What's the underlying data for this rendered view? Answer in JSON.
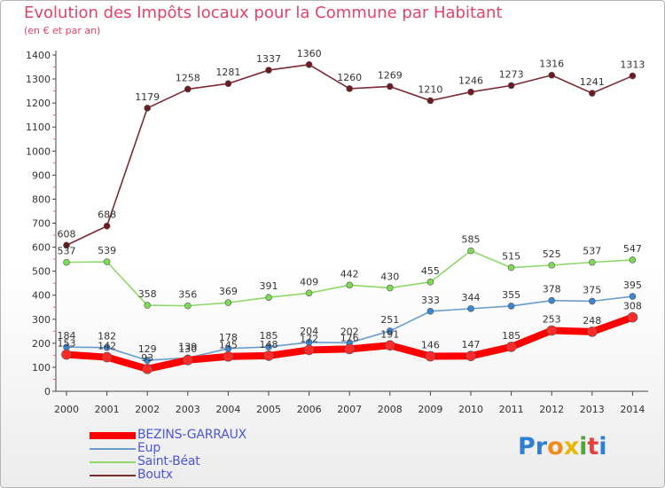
{
  "header": {
    "title": "Evolution des Impôts locaux pour la Commune par Habitant",
    "subtitle": "(en € et par an)"
  },
  "logo": {
    "letters": [
      "P",
      "r",
      "o",
      "x",
      "i",
      "t",
      "i"
    ],
    "colors": [
      "#2f7fd2",
      "#2f7fd2",
      "#f28a1c",
      "#e6b800",
      "#4da83a",
      "#e64040",
      "#2f7fd2"
    ]
  },
  "colors": {
    "title": "#e0426a",
    "legend_text": "#4a55d8",
    "axis": "#444444",
    "gridline": "#dddddd"
  },
  "chart_data": {
    "type": "line",
    "title": "Evolution des Impôts locaux pour la Commune par Habitant",
    "subtitle": "(en € et par an)",
    "xlabel": "",
    "ylabel": "",
    "categories": [
      "2000",
      "2001",
      "2002",
      "2003",
      "2004",
      "2005",
      "2006",
      "2007",
      "2008",
      "2009",
      "2010",
      "2011",
      "2012",
      "2013",
      "2014"
    ],
    "ylim": [
      0,
      1400
    ],
    "yticks": [
      0,
      100,
      200,
      300,
      400,
      500,
      600,
      700,
      800,
      900,
      1000,
      1100,
      1200,
      1300,
      1400
    ],
    "ytick_labels": [
      "0",
      "100",
      "200",
      "300",
      "400",
      "500",
      "600",
      "700",
      "800",
      "900",
      "1000",
      "1100",
      "1200",
      "1300",
      "1400"
    ],
    "grid": false,
    "legend_position": "bottom-left",
    "series": [
      {
        "name": "BEZINS-GARRAUX",
        "color": "#ff0000",
        "marker_color": "#ff2a2a",
        "values": [
          153,
          142,
          93,
          130,
          145,
          148,
          172,
          176,
          191,
          146,
          147,
          185,
          253,
          248,
          308
        ],
        "labels": [
          "153",
          "142",
          "93",
          "130",
          "145",
          "148",
          "172",
          "176",
          "191",
          "146",
          "147",
          "185",
          "253",
          "248",
          "308"
        ]
      },
      {
        "name": "Eup",
        "color": "#6a9ccc",
        "marker_color": "#3a86d4",
        "values": [
          184,
          182,
          129,
          139,
          178,
          185,
          204,
          202,
          251,
          333,
          344,
          355,
          378,
          375,
          395
        ],
        "labels": [
          "184",
          "182",
          "129",
          "139",
          "178",
          "185",
          "204",
          "202",
          "251",
          "333",
          "344",
          "355",
          "378",
          "375",
          "395"
        ]
      },
      {
        "name": "Saint-Béat",
        "color": "#8ed86a",
        "marker_color": "#7ed957",
        "values": [
          537,
          539,
          358,
          356,
          369,
          391,
          409,
          442,
          430,
          455,
          585,
          515,
          525,
          537,
          547
        ],
        "labels": [
          "537",
          "539",
          "358",
          "356",
          "369",
          "391",
          "409",
          "442",
          "430",
          "455",
          "585",
          "515",
          "525",
          "537",
          "547"
        ]
      },
      {
        "name": "Boutx",
        "color": "#7a2a30",
        "marker_color": "#6e1a22",
        "values": [
          608,
          688,
          1179,
          1258,
          1281,
          1337,
          1360,
          1260,
          1269,
          1210,
          1246,
          1273,
          1316,
          1241,
          1313
        ],
        "labels": [
          "608",
          "688",
          "1179",
          "1258",
          "1281",
          "1337",
          "1360",
          "1260",
          "1269",
          "1210",
          "1246",
          "1273",
          "1316",
          "1241",
          "1313"
        ]
      }
    ]
  }
}
